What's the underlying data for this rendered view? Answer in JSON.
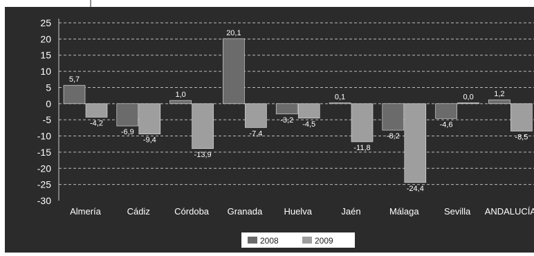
{
  "chart_data": {
    "type": "bar",
    "title": "",
    "xlabel": "",
    "ylabel": "",
    "categories": [
      "Almería",
      "Cádiz",
      "Córdoba",
      "Granada",
      "Huelva",
      "Jaén",
      "Málaga",
      "Sevilla",
      "ANDALUCÍA"
    ],
    "series": [
      {
        "name": "2008",
        "values": [
          5.7,
          -6.9,
          1.0,
          20.1,
          -3.2,
          0.1,
          -8.2,
          -4.6,
          1.2
        ],
        "labels": [
          "5,7",
          "-6,9",
          "1,0",
          "20,1",
          "-3,2",
          "0,1",
          "-8,2",
          "-4,6",
          "1,2"
        ],
        "color": "#6b6b6b"
      },
      {
        "name": "2009",
        "values": [
          -4.2,
          -9.4,
          -13.9,
          -7.4,
          -4.5,
          -11.8,
          -24.4,
          0.0,
          -8.5
        ],
        "labels": [
          "-4,2",
          "-9,4",
          "-13,9",
          "-7,4",
          "-4,5",
          "-11,8",
          "-24,4",
          "0,0",
          "-8,5"
        ],
        "color": "#9e9e9e"
      }
    ],
    "ylim": [
      -30,
      25
    ],
    "yticks": [
      25,
      20,
      15,
      10,
      5,
      0,
      -5,
      -10,
      -15,
      -20,
      -25,
      -30
    ],
    "grid": true,
    "legend_position": "bottom-center",
    "background": "#2b2b2b",
    "plot_background": "#2b2b2b"
  }
}
